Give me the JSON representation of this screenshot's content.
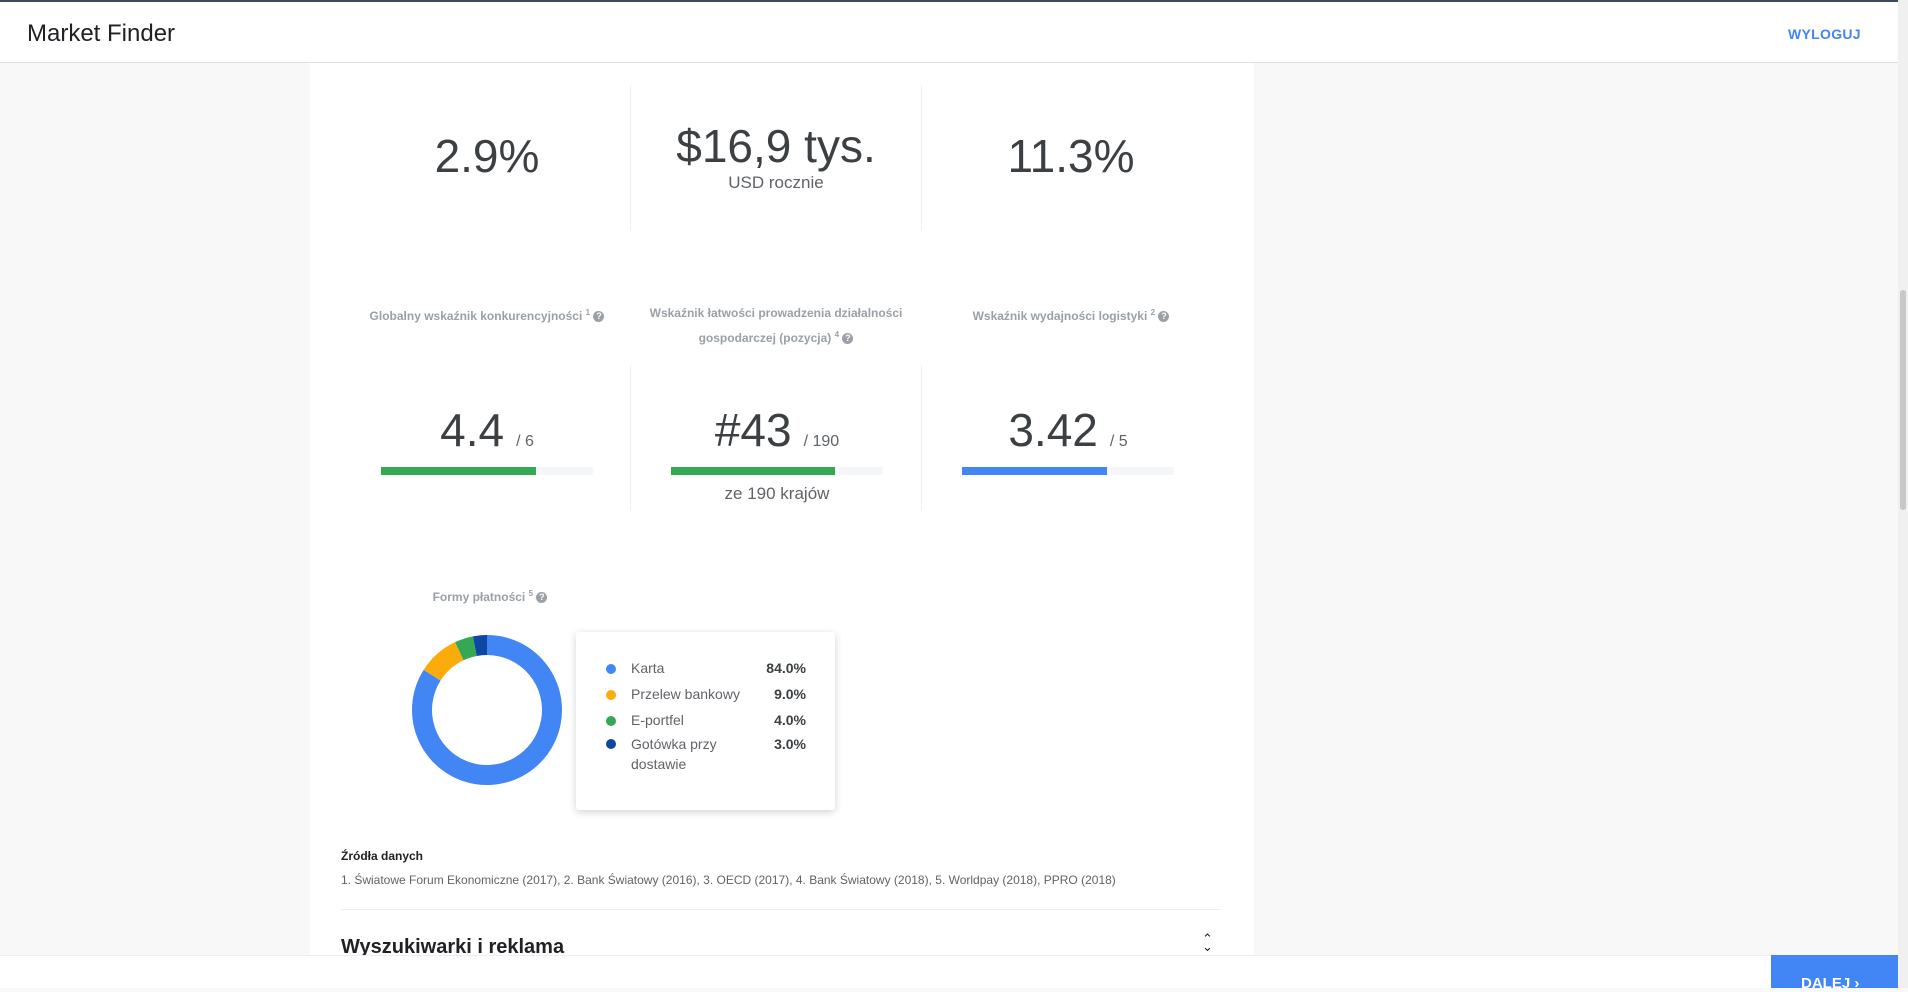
{
  "header": {
    "title": "Market Finder",
    "logout_label": "WYLOGUJ"
  },
  "stats_top": [
    {
      "value": "2.9%",
      "sub": ""
    },
    {
      "value": "$16,9 tys.",
      "sub": "USD rocznie"
    },
    {
      "value": "11.3%",
      "sub": ""
    }
  ],
  "indicators": [
    {
      "label": "Globalny wskaźnik konkurencyjności",
      "footnote": "1",
      "value": "4.4",
      "max": "/ 6",
      "progress": 0.733,
      "color": "#34a853",
      "sub": ""
    },
    {
      "label": "Wskaźnik łatwości prowadzenia działalności gospodarczej (pozycja)",
      "footnote": "4",
      "value": "#43",
      "max": "/ 190",
      "progress": 0.774,
      "color": "#34a853",
      "sub": "ze 190 krajów"
    },
    {
      "label": "Wskaźnik wydajności logistyki",
      "footnote": "2",
      "value": "3.42",
      "max": "/ 5",
      "progress": 0.684,
      "color": "#4285f4",
      "sub": ""
    }
  ],
  "chart_data": {
    "type": "pie",
    "title": "Formy płatności",
    "footnote": "5",
    "categories": [
      "Karta",
      "Przelew bankowy",
      "E-portfel",
      "Gotówka przy dostawie"
    ],
    "values": [
      84.0,
      9.0,
      4.0,
      3.0
    ],
    "labels": [
      "84.0%",
      "9.0%",
      "4.0%",
      "3.0%"
    ],
    "colors": [
      "#4285f4",
      "#fbab0a",
      "#34a853",
      "#0d47a1"
    ],
    "legend": "right"
  },
  "sources": {
    "title": "Źródła danych",
    "text": "1. Światowe Forum Ekonomiczne (2017), 2. Bank Światowy (2016), 3. OECD (2017), 4. Bank Światowy (2018), 5. Worldpay (2018), PPRO (2018)"
  },
  "section": {
    "title": "Wyszukiwarki i reklama"
  },
  "footer": {
    "next_label": "DALEJ"
  }
}
